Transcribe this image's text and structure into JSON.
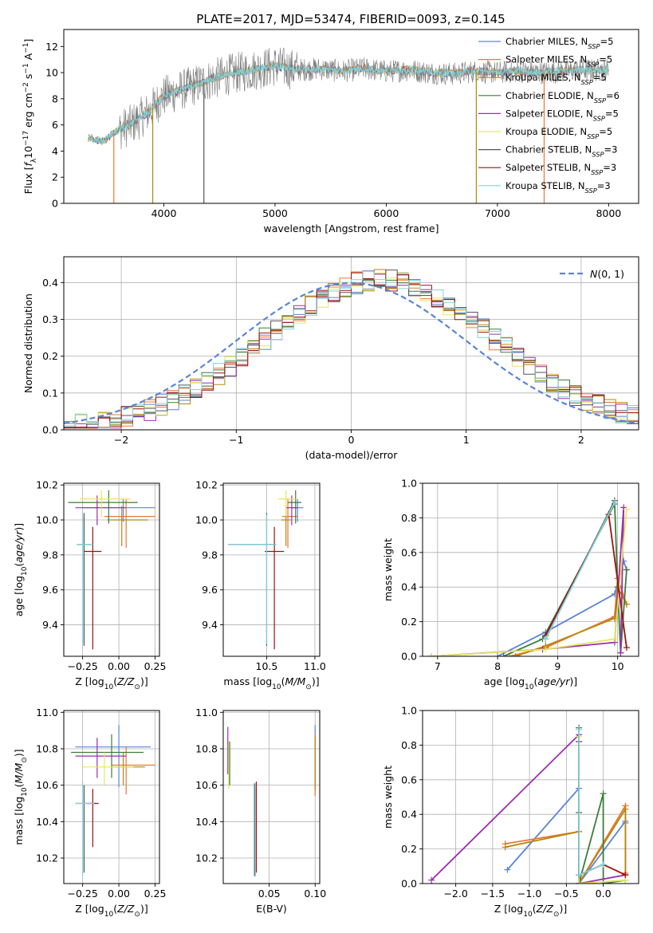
{
  "figure_title": "PLATE=2017, MJD=53474, FIBERID=0093, z=0.145",
  "series_colors": [
    "#5b84d6",
    "#e9773a",
    "#b8860b",
    "#3c7d3c",
    "#9b2fae",
    "#e6e65c",
    "#555555",
    "#a01010",
    "#7fd4dc"
  ],
  "chart_data": [
    {
      "id": "spectrum",
      "type": "line",
      "xlabel": "wavelength [Angstrom, rest frame]",
      "ylabel": "Flux [fλ10⁻¹⁷ erg cm⁻² s⁻¹ A⁻¹]",
      "xlim": [
        3100,
        8270
      ],
      "ylim": [
        0,
        13.3
      ],
      "xticks": [
        4000,
        5000,
        6000,
        7000,
        8000
      ],
      "yticks": [
        0,
        2,
        4,
        6,
        8,
        10,
        12
      ],
      "grid": false,
      "legend_position": "top-right",
      "legend": [
        {
          "main": "Chabrier MILES, N",
          "sub": "SSP",
          "post": "=5"
        },
        {
          "main": "Salpeter MILES, N",
          "sub": "SSP",
          "post": "=5"
        },
        {
          "main": "Kroupa MILES, N",
          "sub": "SSP",
          "post": "=5"
        },
        {
          "main": "Chabrier ELODIE, N",
          "sub": "SSP",
          "post": "=6"
        },
        {
          "main": "Salpeter ELODIE, N",
          "sub": "SSP",
          "post": "=5"
        },
        {
          "main": "Kroupa ELODIE, N",
          "sub": "SSP",
          "post": "=5"
        },
        {
          "main": "Chabrier STELIB, N",
          "sub": "SSP",
          "post": "=3"
        },
        {
          "main": "Salpeter STELIB, N",
          "sub": "SSP",
          "post": "=3"
        },
        {
          "main": "Kroupa STELIB, N",
          "sub": "SSP",
          "post": "=3"
        }
      ],
      "continuum": {
        "x": [
          3320,
          3450,
          3550,
          3700,
          3850,
          4000,
          4200,
          4400,
          4600,
          4800,
          5000,
          5200,
          5400,
          5600,
          5800,
          6000,
          6200,
          6400,
          6600,
          6800,
          7000,
          7200,
          7400,
          7600,
          7800,
          8000
        ],
        "y": [
          5.0,
          4.7,
          5.4,
          6.0,
          6.9,
          8.2,
          8.8,
          9.4,
          9.9,
          10.2,
          10.5,
          10.2,
          10.3,
          10.1,
          10.3,
          10.1,
          10.2,
          10.0,
          9.9,
          10.1,
          10.0,
          10.1,
          10.0,
          10.1,
          10.2,
          10.2
        ]
      },
      "drops": [
        {
          "x": 3550,
          "series": 1
        },
        {
          "x": 3900,
          "series": 2
        },
        {
          "x": 4360,
          "series": 6
        },
        {
          "x": 6810,
          "series": 2
        },
        {
          "x": 7420,
          "series": 1
        }
      ]
    },
    {
      "id": "residuals",
      "type": "bar",
      "xlabel": "(data-model)/error",
      "ylabel": "Normed distribution",
      "xlim": [
        -2.5,
        2.5
      ],
      "ylim": [
        0,
        0.47
      ],
      "xticks": [
        -2,
        -1,
        0,
        1,
        2
      ],
      "yticks": [
        0.0,
        0.1,
        0.2,
        0.3,
        0.4
      ],
      "grid": true,
      "legend_position": "top-right",
      "reference_label": "N(0,1)",
      "bin_width": 0.1,
      "bin_start": -2.5
    },
    {
      "id": "age_vs_Z",
      "type": "scatter",
      "xlabel": "Z [log10(Z/Z⊙)]",
      "ylabel": "age  [log10(age/yr)]",
      "xlim": [
        -0.38,
        0.28
      ],
      "ylim": [
        9.22,
        10.21
      ],
      "xticks": [
        -0.25,
        0.0,
        0.25
      ],
      "yticks": [
        9.4,
        9.6,
        9.8,
        10.0,
        10.2
      ],
      "grid": true,
      "points": [
        {
          "s": 0,
          "x": 0.03,
          "y": 10.07,
          "xe": [
            0.28,
            0.22
          ],
          "ye": [
            0.08,
            0.05
          ]
        },
        {
          "s": 1,
          "x": 0.05,
          "y": 10.02,
          "xe": [
            0.15,
            0.2
          ],
          "ye": [
            0.18,
            0.1
          ]
        },
        {
          "s": 2,
          "x": 0.02,
          "y": 10.0,
          "xe": [
            0.1,
            0.18
          ],
          "ye": [
            0.15,
            0.08
          ]
        },
        {
          "s": 3,
          "x": -0.07,
          "y": 10.1,
          "xe": [
            0.28,
            0.2
          ],
          "ye": [
            0.12,
            0.07
          ]
        },
        {
          "s": 4,
          "x": -0.15,
          "y": 10.07,
          "xe": [
            0.15,
            0.2
          ],
          "ye": [
            0.1,
            0.07
          ]
        },
        {
          "s": 5,
          "x": -0.12,
          "y": 10.12,
          "xe": [
            0.15,
            0.2
          ],
          "ye": [
            0.1,
            0.05
          ]
        },
        {
          "s": 6,
          "x": -0.24,
          "y": 9.86,
          "xe": [
            0.05,
            0.05
          ],
          "ye": [
            0.58,
            0.18
          ]
        },
        {
          "s": 7,
          "x": -0.18,
          "y": 9.82,
          "xe": [
            0.06,
            0.06
          ],
          "ye": [
            0.56,
            0.14
          ]
        },
        {
          "s": 8,
          "x": -0.25,
          "y": 9.86,
          "xe": [
            0.04,
            0.07
          ],
          "ye": [
            0.57,
            0.17
          ]
        }
      ]
    },
    {
      "id": "age_vs_mass",
      "type": "scatter",
      "xlabel": "mass [log10(M/M⊙)]",
      "ylabel": "",
      "xlim": [
        10.05,
        11.05
      ],
      "ylim": [
        9.22,
        10.21
      ],
      "xticks": [
        10.5,
        11.0
      ],
      "yticks": [
        9.4,
        9.6,
        9.8,
        10.0,
        10.2
      ],
      "grid": true,
      "points": [
        {
          "s": 0,
          "x": 10.82,
          "y": 10.07,
          "xe": [
            0.06,
            0.06
          ],
          "ye": [
            0.08,
            0.05
          ]
        },
        {
          "s": 1,
          "x": 10.72,
          "y": 10.02,
          "xe": [
            0.06,
            0.1
          ],
          "ye": [
            0.18,
            0.1
          ]
        },
        {
          "s": 2,
          "x": 10.7,
          "y": 10.0,
          "xe": [
            0.05,
            0.05
          ],
          "ye": [
            0.15,
            0.08
          ]
        },
        {
          "s": 3,
          "x": 10.8,
          "y": 10.1,
          "xe": [
            0.08,
            0.06
          ],
          "ye": [
            0.12,
            0.07
          ]
        },
        {
          "s": 4,
          "x": 10.76,
          "y": 10.07,
          "xe": [
            0.06,
            0.06
          ],
          "ye": [
            0.1,
            0.07
          ]
        },
        {
          "s": 5,
          "x": 10.7,
          "y": 10.12,
          "xe": [
            0.08,
            0.1
          ],
          "ye": [
            0.1,
            0.05
          ]
        },
        {
          "s": 6,
          "x": 10.5,
          "y": 9.86,
          "xe": [
            0.4,
            0.1
          ],
          "ye": [
            0.58,
            0.18
          ]
        },
        {
          "s": 7,
          "x": 10.58,
          "y": 9.82,
          "xe": [
            0.1,
            0.1
          ],
          "ye": [
            0.56,
            0.14
          ]
        },
        {
          "s": 8,
          "x": 10.5,
          "y": 9.86,
          "xe": [
            0.4,
            0.1
          ],
          "ye": [
            0.57,
            0.17
          ]
        }
      ]
    },
    {
      "id": "weight_vs_age",
      "type": "line",
      "xlabel": "age  [log10(age/yr)]",
      "ylabel": "mass weight",
      "xlim": [
        6.75,
        10.35
      ],
      "ylim": [
        0,
        1.0
      ],
      "xticks": [
        7,
        8,
        9,
        10
      ],
      "yticks": [
        0.0,
        0.2,
        0.4,
        0.6,
        0.8,
        1.0
      ],
      "grid": true,
      "series": [
        {
          "s": 0,
          "x": [
            8.0,
            8.8,
            9.95,
            10.1,
            10.15
          ],
          "y": [
            0.0,
            0.14,
            0.36,
            0.55,
            0.5
          ]
        },
        {
          "s": 1,
          "x": [
            8.2,
            8.8,
            9.95,
            10.0,
            10.15
          ],
          "y": [
            0.0,
            0.05,
            0.23,
            0.45,
            0.3
          ]
        },
        {
          "s": 2,
          "x": [
            8.3,
            8.8,
            9.95,
            10.0,
            10.15
          ],
          "y": [
            0.0,
            0.06,
            0.22,
            0.4,
            0.3
          ]
        },
        {
          "s": 3,
          "x": [
            8.1,
            8.75,
            9.95,
            10.0,
            10.05,
            10.15
          ],
          "y": [
            0.0,
            0.1,
            0.88,
            0.4,
            0.02,
            0.5
          ]
        },
        {
          "s": 4,
          "x": [
            6.9,
            8.75,
            9.95,
            10.1,
            10.05
          ],
          "y": [
            0.0,
            0.04,
            0.08,
            0.86,
            0.02
          ]
        },
        {
          "s": 5,
          "x": [
            6.9,
            8.8,
            9.95,
            10.15
          ],
          "y": [
            0.0,
            0.04,
            0.1,
            0.85
          ]
        },
        {
          "s": 6,
          "x": [
            8.8,
            9.95
          ],
          "y": [
            0.1,
            0.9
          ]
        },
        {
          "s": 7,
          "x": [
            8.8,
            9.85,
            10.15
          ],
          "y": [
            0.12,
            0.82,
            0.05
          ]
        },
        {
          "s": 8,
          "x": [
            8.8,
            9.95
          ],
          "y": [
            0.1,
            0.89
          ]
        }
      ]
    },
    {
      "id": "mass_vs_Z",
      "type": "scatter",
      "xlabel": "Z [log10(Z/Z⊙)]",
      "ylabel": "mass [log10(M/M⊙)]",
      "xlim": [
        -0.38,
        0.28
      ],
      "ylim": [
        10.06,
        11.01
      ],
      "xticks": [
        -0.25,
        0.0,
        0.25
      ],
      "yticks": [
        10.2,
        10.4,
        10.6,
        10.8,
        11.0
      ],
      "grid": true,
      "points": [
        {
          "s": 0,
          "x": 0.0,
          "y": 10.81,
          "xe": [
            0.3,
            0.22
          ],
          "ye": [
            0.22,
            0.12
          ]
        },
        {
          "s": 1,
          "x": 0.05,
          "y": 10.71,
          "xe": [
            0.1,
            0.2
          ],
          "ye": [
            0.16,
            0.1
          ]
        },
        {
          "s": 2,
          "x": 0.03,
          "y": 10.7,
          "xe": [
            0.08,
            0.15
          ],
          "ye": [
            0.1,
            0.08
          ]
        },
        {
          "s": 3,
          "x": -0.05,
          "y": 10.78,
          "xe": [
            0.28,
            0.22
          ],
          "ye": [
            0.14,
            0.1
          ]
        },
        {
          "s": 4,
          "x": -0.15,
          "y": 10.76,
          "xe": [
            0.15,
            0.2
          ],
          "ye": [
            0.12,
            0.1
          ]
        },
        {
          "s": 5,
          "x": -0.1,
          "y": 10.7,
          "xe": [
            0.15,
            0.2
          ],
          "ye": [
            0.1,
            0.08
          ]
        },
        {
          "s": 6,
          "x": -0.24,
          "y": 10.5,
          "xe": [
            0.06,
            0.08
          ],
          "ye": [
            0.38,
            0.1
          ]
        },
        {
          "s": 7,
          "x": -0.18,
          "y": 10.5,
          "xe": [
            0.04,
            0.04
          ],
          "ye": [
            0.24,
            0.08
          ]
        },
        {
          "s": 8,
          "x": -0.25,
          "y": 10.5,
          "xe": [
            0.05,
            0.08
          ],
          "ye": [
            0.4,
            0.12
          ]
        }
      ]
    },
    {
      "id": "mass_vs_ebv",
      "type": "scatter",
      "xlabel": "E(B-V)",
      "ylabel": "",
      "xlim": [
        0.0,
        0.105
      ],
      "ylim": [
        10.06,
        11.01
      ],
      "xticks": [
        0.05,
        0.1
      ],
      "yticks": [
        10.2,
        10.4,
        10.6,
        10.8,
        11.0
      ],
      "grid": true,
      "points": [
        {
          "s": 0,
          "x": 0.1,
          "y": 10.75,
          "xe": [
            0,
            0
          ],
          "ye": [
            0.18,
            0.18
          ]
        },
        {
          "s": 1,
          "x": 0.1,
          "y": 10.72,
          "xe": [
            0,
            0
          ],
          "ye": [
            0.18,
            0.16
          ]
        },
        {
          "s": 2,
          "x": 0.1,
          "y": 10.72,
          "xe": [
            0,
            0
          ],
          "ye": [
            0.14,
            0.15
          ]
        },
        {
          "s": 3,
          "x": 0.007,
          "y": 10.72,
          "xe": [
            0,
            0
          ],
          "ye": [
            0.12,
            0.12
          ]
        },
        {
          "s": 4,
          "x": 0.005,
          "y": 10.78,
          "xe": [
            0,
            0
          ],
          "ye": [
            0.12,
            0.14
          ]
        },
        {
          "s": 5,
          "x": 0.006,
          "y": 10.72,
          "xe": [
            0,
            0
          ],
          "ye": [
            0.14,
            0.12
          ]
        },
        {
          "s": 6,
          "x": 0.034,
          "y": 10.36,
          "xe": [
            0,
            0
          ],
          "ye": [
            0.26,
            0.25
          ]
        },
        {
          "s": 7,
          "x": 0.036,
          "y": 10.4,
          "xe": [
            0,
            0
          ],
          "ye": [
            0.28,
            0.22
          ]
        },
        {
          "s": 8,
          "x": 0.035,
          "y": 10.35,
          "xe": [
            0,
            0
          ],
          "ye": [
            0.25,
            0.26
          ]
        }
      ]
    },
    {
      "id": "weight_vs_Z",
      "type": "line",
      "xlabel": "Z [log10(Z/Z⊙)]",
      "ylabel": "mass weight",
      "xlim": [
        -2.45,
        0.48
      ],
      "ylim": [
        0,
        1.0
      ],
      "xticks": [
        -2.0,
        -1.5,
        -1.0,
        -0.5,
        0.0
      ],
      "yticks": [
        0.0,
        0.2,
        0.4,
        0.6,
        0.8,
        1.0
      ],
      "grid": true,
      "series": [
        {
          "s": 0,
          "x": [
            -1.3,
            -0.33,
            -0.33,
            0.3,
            0.3
          ],
          "y": [
            0.08,
            0.55,
            0.0,
            0.36,
            0.35
          ]
        },
        {
          "s": 1,
          "x": [
            -1.33,
            -0.33,
            -0.33,
            0.3,
            0.3
          ],
          "y": [
            0.23,
            0.3,
            0.0,
            0.45,
            0.06
          ]
        },
        {
          "s": 2,
          "x": [
            -1.33,
            -0.33,
            -0.33,
            0.3,
            0.3
          ],
          "y": [
            0.21,
            0.3,
            0.0,
            0.43,
            0.05
          ]
        },
        {
          "s": 3,
          "x": [
            -0.33,
            -0.33,
            0.0,
            0.0,
            0.3
          ],
          "y": [
            0.41,
            0.0,
            0.52,
            0.0,
            0.02
          ]
        },
        {
          "s": 4,
          "x": [
            -2.33,
            -0.33,
            -0.33,
            0.3
          ],
          "y": [
            0.02,
            0.86,
            0.0,
            0.05
          ]
        },
        {
          "s": 5,
          "x": [
            -0.33,
            -0.33,
            0.3
          ],
          "y": [
            0.85,
            0.0,
            0.02
          ]
        },
        {
          "s": 6,
          "x": [
            -0.33,
            -0.33,
            0.0
          ],
          "y": [
            0.9,
            0.05,
            0.11
          ]
        },
        {
          "s": 7,
          "x": [
            -0.33,
            -0.33,
            0.0,
            0.3
          ],
          "y": [
            0.82,
            0.05,
            0.11,
            0.05
          ]
        },
        {
          "s": 8,
          "x": [
            -0.33,
            -0.33,
            0.0
          ],
          "y": [
            0.89,
            0.05,
            0.11
          ]
        }
      ]
    }
  ]
}
